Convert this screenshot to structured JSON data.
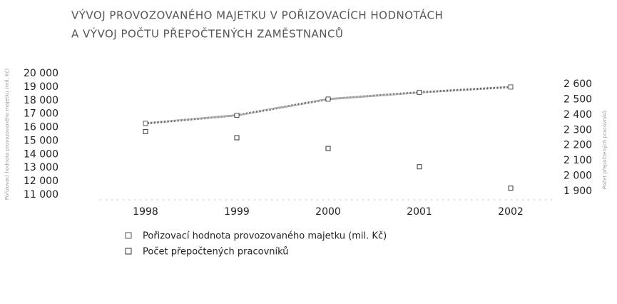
{
  "chart_data": {
    "type": "line",
    "title": [
      "VÝVOJ PROVOZOVANÉHO MAJETKU V POŘIZOVACÍCH HODNOTÁCH",
      "A VÝVOJ POČTU PŘEPOČTENÝCH ZAMĚSTNANCŮ"
    ],
    "ylabel": "Pořizovací hodnota provozovaného majetku (mil. Kč)",
    "y2label": "Počet přepočtených pracovníků",
    "categories": [
      "1998",
      "1999",
      "2000",
      "2001",
      "2002"
    ],
    "series": [
      {
        "name": "Pořizovací hodnota provozovaného majetku (mil. Kč)",
        "color": "#555555",
        "style": "line",
        "values": [
          16300,
          16900,
          18100,
          18600,
          19000
        ]
      },
      {
        "name": "Počet přepočtených pracovníků",
        "color": "#333333",
        "style": "markers",
        "axis": "y2",
        "values": [
          2290,
          2250,
          2180,
          2060,
          1920
        ]
      }
    ],
    "ylim": [
      11000,
      20000
    ],
    "yticks": [
      {
        "value": 11000,
        "label": "11 000"
      },
      {
        "value": 12000,
        "label": "12 000"
      },
      {
        "value": 13000,
        "label": "13 000"
      },
      {
        "value": 14000,
        "label": "14 000"
      },
      {
        "value": 15000,
        "label": "15 000"
      },
      {
        "value": 16000,
        "label": "16 000"
      },
      {
        "value": 17000,
        "label": "17 000"
      },
      {
        "value": 18000,
        "label": "18 000"
      },
      {
        "value": 19000,
        "label": "19 000"
      },
      {
        "value": 20000,
        "label": "20 000"
      }
    ],
    "y2lim": [
      1900,
      2600
    ],
    "y2ticks": [
      {
        "value": 1900,
        "label": "1 900"
      },
      {
        "value": 2000,
        "label": "2 000"
      },
      {
        "value": 2100,
        "label": "2 100"
      },
      {
        "value": 2200,
        "label": "2 200"
      },
      {
        "value": 2300,
        "label": "2 300"
      },
      {
        "value": 2400,
        "label": "2 400"
      },
      {
        "value": 2500,
        "label": "2 500"
      },
      {
        "value": 2600,
        "label": "2 600"
      }
    ]
  }
}
